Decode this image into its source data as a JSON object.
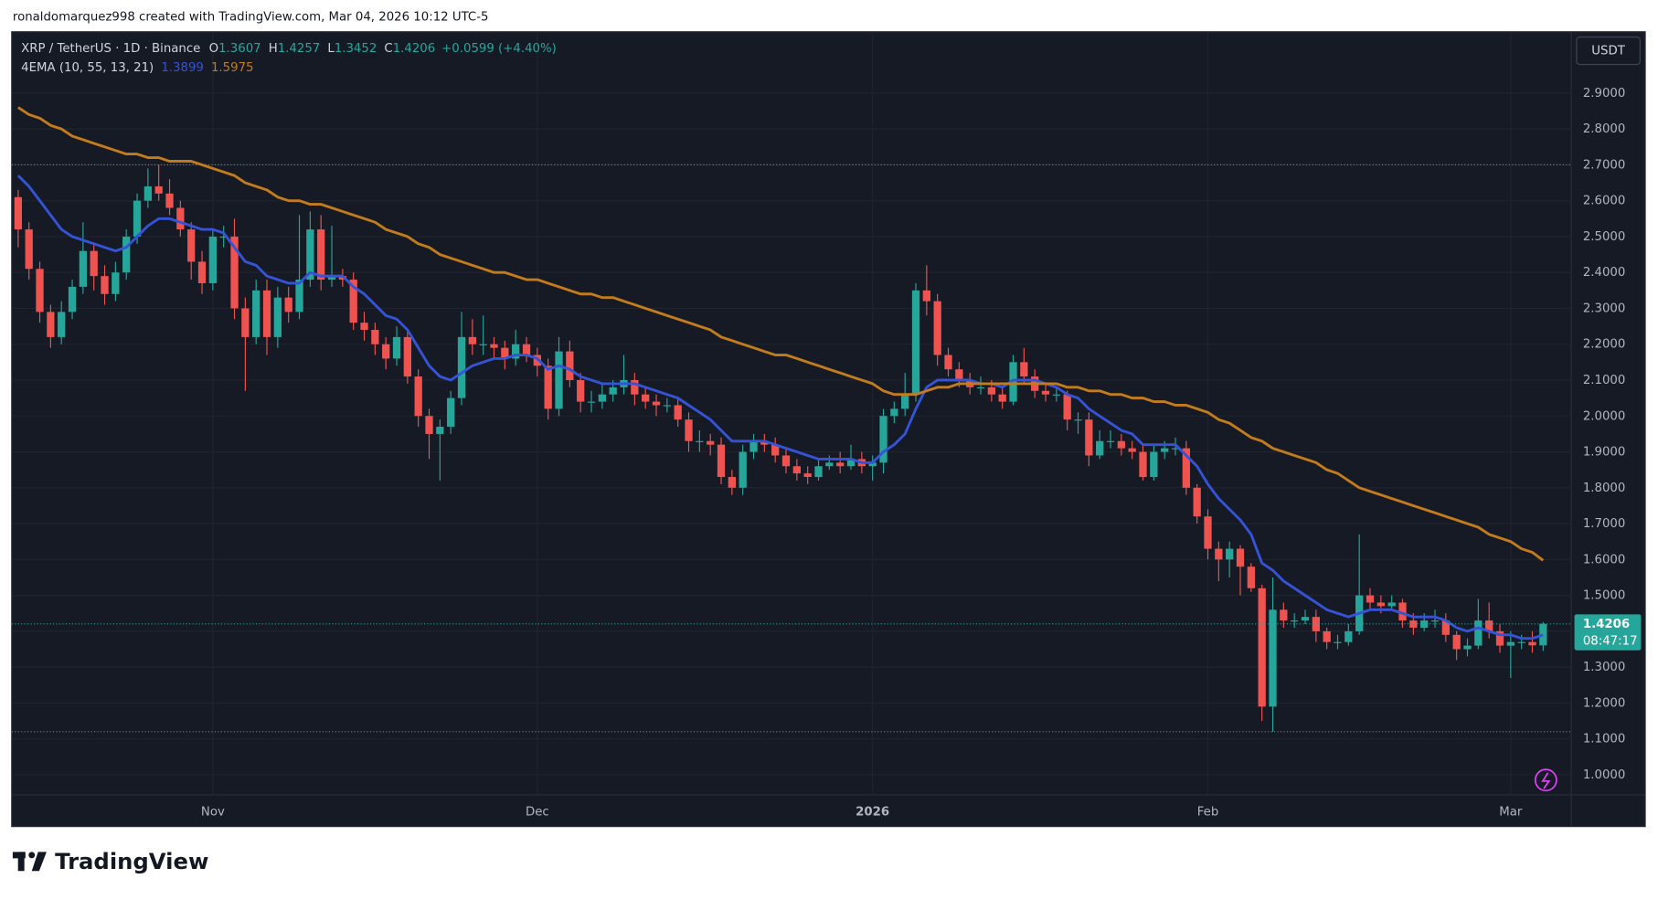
{
  "header": {
    "credit": "ronaldomarquez998 created with TradingView.com, Mar 04, 2026 10:12 UTC-5",
    "symbol": "XRP / TetherUS · 1D · Binance",
    "change": "+0.0599 (+4.40%)",
    "indicator": "4EMA (10, 55, 13, 21)",
    "currency": "USDT",
    "countdown": "08:47:17",
    "brand": "TradingView"
  },
  "chart_data": {
    "type": "candlestick",
    "ohlc_labels": [
      "O",
      "H",
      "L",
      "C"
    ],
    "open": [
      2.61,
      2.52,
      2.41,
      2.29,
      2.22,
      2.29,
      2.36,
      2.46,
      2.39,
      2.34,
      2.4,
      2.5,
      2.6,
      2.64,
      2.62,
      2.58,
      2.52,
      2.43,
      2.37,
      2.5,
      2.5,
      2.3,
      2.22,
      2.35,
      2.22,
      2.33,
      2.29,
      2.38,
      2.52,
      2.38,
      2.39,
      2.38,
      2.26,
      2.24,
      2.2,
      2.16,
      2.22,
      2.11,
      2.0,
      1.95,
      1.97,
      2.05,
      2.22,
      2.2,
      2.2,
      2.19,
      2.16,
      2.2,
      2.17,
      2.14,
      2.02,
      2.18,
      2.1,
      2.04,
      2.04,
      2.06,
      2.08,
      2.1,
      2.06,
      2.04,
      2.03,
      2.03,
      1.99,
      1.93,
      1.93,
      1.92,
      1.83,
      1.8,
      1.9,
      1.93,
      1.92,
      1.89,
      1.86,
      1.84,
      1.83,
      1.86,
      1.87,
      1.86,
      1.88,
      1.86,
      1.87,
      2.0,
      2.02,
      2.06,
      2.35,
      2.32,
      2.17,
      2.13,
      2.1,
      2.08,
      2.08,
      2.06,
      2.04,
      2.15,
      2.11,
      2.07,
      2.06,
      2.06,
      1.99,
      1.99,
      1.89,
      1.93,
      1.93,
      1.91,
      1.9,
      1.83,
      1.9,
      1.91,
      1.91,
      1.8,
      1.72,
      1.63,
      1.6,
      1.63,
      1.58,
      1.52,
      1.19,
      1.46,
      1.43,
      1.43,
      1.44,
      1.4,
      1.37,
      1.37,
      1.4,
      1.5,
      1.48,
      1.47,
      1.48,
      1.43,
      1.41,
      1.43,
      1.43,
      1.39,
      1.35,
      1.36,
      1.43,
      1.4,
      1.36,
      1.37,
      1.37,
      1.3607
    ],
    "high": [
      2.63,
      2.54,
      2.43,
      2.31,
      2.32,
      2.38,
      2.54,
      2.48,
      2.42,
      2.43,
      2.52,
      2.62,
      2.69,
      2.7,
      2.66,
      2.6,
      2.54,
      2.46,
      2.52,
      2.53,
      2.55,
      2.33,
      2.38,
      2.38,
      2.36,
      2.36,
      2.56,
      2.57,
      2.56,
      2.53,
      2.41,
      2.4,
      2.29,
      2.26,
      2.22,
      2.25,
      2.24,
      2.13,
      2.02,
      1.99,
      2.07,
      2.29,
      2.27,
      2.28,
      2.22,
      2.21,
      2.24,
      2.22,
      2.19,
      2.16,
      2.22,
      2.21,
      2.12,
      2.07,
      2.09,
      2.1,
      2.17,
      2.12,
      2.08,
      2.06,
      2.05,
      2.05,
      2.01,
      1.96,
      1.95,
      1.94,
      1.85,
      1.92,
      1.95,
      1.95,
      1.94,
      1.91,
      1.88,
      1.86,
      1.88,
      1.89,
      1.9,
      1.92,
      1.9,
      1.89,
      2.02,
      2.04,
      2.12,
      2.37,
      2.42,
      2.34,
      2.19,
      2.15,
      2.12,
      2.11,
      2.1,
      2.08,
      2.17,
      2.19,
      2.13,
      2.09,
      2.08,
      2.07,
      2.01,
      2.01,
      1.96,
      1.96,
      1.95,
      1.93,
      1.92,
      1.92,
      1.93,
      1.94,
      1.93,
      1.81,
      1.74,
      1.65,
      1.65,
      1.64,
      1.59,
      1.53,
      1.55,
      1.48,
      1.45,
      1.46,
      1.46,
      1.41,
      1.39,
      1.42,
      1.67,
      1.52,
      1.5,
      1.5,
      1.49,
      1.45,
      1.45,
      1.46,
      1.45,
      1.4,
      1.38,
      1.49,
      1.48,
      1.42,
      1.4,
      1.39,
      1.4,
      1.4257
    ],
    "low": [
      2.47,
      2.38,
      2.26,
      2.19,
      2.2,
      2.27,
      2.34,
      2.35,
      2.31,
      2.32,
      2.38,
      2.48,
      2.58,
      2.6,
      2.56,
      2.5,
      2.38,
      2.34,
      2.35,
      2.47,
      2.27,
      2.07,
      2.2,
      2.17,
      2.19,
      2.26,
      2.27,
      2.36,
      2.35,
      2.36,
      2.36,
      2.24,
      2.21,
      2.17,
      2.13,
      2.14,
      2.09,
      1.97,
      1.88,
      1.82,
      1.95,
      2.03,
      2.17,
      2.17,
      2.16,
      2.13,
      2.14,
      2.15,
      2.11,
      1.99,
      2.0,
      2.08,
      2.01,
      2.01,
      2.02,
      2.04,
      2.06,
      2.03,
      2.02,
      2.0,
      2.01,
      1.97,
      1.9,
      1.9,
      1.89,
      1.81,
      1.78,
      1.78,
      1.88,
      1.9,
      1.87,
      1.84,
      1.82,
      1.81,
      1.82,
      1.85,
      1.84,
      1.85,
      1.84,
      1.82,
      1.84,
      1.98,
      2.0,
      2.04,
      2.28,
      2.14,
      2.11,
      2.08,
      2.06,
      2.06,
      2.04,
      2.02,
      2.03,
      2.09,
      2.05,
      2.04,
      2.04,
      1.96,
      1.95,
      1.86,
      1.88,
      1.91,
      1.89,
      1.88,
      1.82,
      1.82,
      1.88,
      1.89,
      1.78,
      1.7,
      1.6,
      1.54,
      1.55,
      1.5,
      1.51,
      1.15,
      1.12,
      1.41,
      1.41,
      1.42,
      1.37,
      1.35,
      1.35,
      1.36,
      1.39,
      1.46,
      1.45,
      1.46,
      1.41,
      1.39,
      1.4,
      1.41,
      1.37,
      1.32,
      1.33,
      1.35,
      1.38,
      1.34,
      1.27,
      1.35,
      1.34,
      1.3452
    ],
    "close": [
      2.52,
      2.41,
      2.29,
      2.22,
      2.29,
      2.36,
      2.46,
      2.39,
      2.34,
      2.4,
      2.5,
      2.6,
      2.64,
      2.62,
      2.58,
      2.52,
      2.43,
      2.37,
      2.5,
      2.5,
      2.3,
      2.22,
      2.35,
      2.22,
      2.33,
      2.29,
      2.38,
      2.52,
      2.38,
      2.39,
      2.38,
      2.26,
      2.24,
      2.2,
      2.16,
      2.22,
      2.11,
      2.0,
      1.95,
      1.97,
      2.05,
      2.22,
      2.2,
      2.2,
      2.19,
      2.16,
      2.2,
      2.17,
      2.14,
      2.02,
      2.18,
      2.1,
      2.04,
      2.04,
      2.06,
      2.08,
      2.1,
      2.06,
      2.04,
      2.03,
      2.03,
      1.99,
      1.93,
      1.93,
      1.92,
      1.83,
      1.8,
      1.9,
      1.93,
      1.92,
      1.89,
      1.86,
      1.84,
      1.83,
      1.86,
      1.87,
      1.86,
      1.88,
      1.86,
      1.87,
      2.0,
      2.02,
      2.06,
      2.35,
      2.32,
      2.17,
      2.13,
      2.1,
      2.08,
      2.08,
      2.06,
      2.04,
      2.15,
      2.11,
      2.07,
      2.06,
      2.06,
      1.99,
      1.99,
      1.89,
      1.93,
      1.93,
      1.91,
      1.9,
      1.83,
      1.9,
      1.91,
      1.91,
      1.8,
      1.72,
      1.63,
      1.6,
      1.63,
      1.58,
      1.52,
      1.19,
      1.46,
      1.43,
      1.43,
      1.44,
      1.4,
      1.37,
      1.37,
      1.4,
      1.5,
      1.48,
      1.47,
      1.48,
      1.43,
      1.41,
      1.43,
      1.43,
      1.39,
      1.35,
      1.36,
      1.43,
      1.4,
      1.36,
      1.37,
      1.37,
      1.3607,
      1.4206
    ],
    "up_color": "#26a69a",
    "down_color": "#ef5350",
    "series": [
      {
        "color": "#3553d6",
        "values": [
          2.67,
          2.64,
          2.6,
          2.56,
          2.52,
          2.5,
          2.49,
          2.48,
          2.47,
          2.46,
          2.47,
          2.5,
          2.53,
          2.55,
          2.55,
          2.54,
          2.53,
          2.52,
          2.52,
          2.51,
          2.47,
          2.43,
          2.42,
          2.39,
          2.38,
          2.37,
          2.37,
          2.4,
          2.39,
          2.39,
          2.39,
          2.36,
          2.34,
          2.31,
          2.28,
          2.27,
          2.24,
          2.19,
          2.14,
          2.11,
          2.1,
          2.12,
          2.14,
          2.15,
          2.16,
          2.16,
          2.17,
          2.17,
          2.16,
          2.13,
          2.14,
          2.13,
          2.11,
          2.1,
          2.09,
          2.09,
          2.09,
          2.09,
          2.08,
          2.07,
          2.06,
          2.05,
          2.03,
          2.01,
          1.99,
          1.96,
          1.93,
          1.93,
          1.93,
          1.93,
          1.92,
          1.91,
          1.9,
          1.89,
          1.88,
          1.88,
          1.88,
          1.88,
          1.87,
          1.87,
          1.9,
          1.92,
          1.95,
          2.02,
          2.08,
          2.1,
          2.1,
          2.1,
          2.1,
          2.09,
          2.09,
          2.08,
          2.1,
          2.1,
          2.1,
          2.09,
          2.08,
          2.06,
          2.05,
          2.02,
          2.0,
          1.98,
          1.96,
          1.95,
          1.92,
          1.92,
          1.92,
          1.92,
          1.89,
          1.86,
          1.81,
          1.77,
          1.74,
          1.71,
          1.67,
          1.59,
          1.57,
          1.54,
          1.52,
          1.5,
          1.48,
          1.46,
          1.45,
          1.44,
          1.45,
          1.46,
          1.46,
          1.46,
          1.45,
          1.44,
          1.44,
          1.44,
          1.43,
          1.41,
          1.4,
          1.41,
          1.4,
          1.39,
          1.39,
          1.38,
          1.38,
          1.3899
        ]
      },
      {
        "color": "#c27c1d",
        "values": [
          2.86,
          2.84,
          2.83,
          2.81,
          2.8,
          2.78,
          2.77,
          2.76,
          2.75,
          2.74,
          2.73,
          2.73,
          2.72,
          2.72,
          2.71,
          2.71,
          2.71,
          2.7,
          2.69,
          2.68,
          2.67,
          2.65,
          2.64,
          2.63,
          2.61,
          2.6,
          2.6,
          2.59,
          2.59,
          2.58,
          2.57,
          2.56,
          2.55,
          2.54,
          2.52,
          2.51,
          2.5,
          2.48,
          2.47,
          2.45,
          2.44,
          2.43,
          2.42,
          2.41,
          2.4,
          2.4,
          2.39,
          2.38,
          2.38,
          2.37,
          2.36,
          2.35,
          2.34,
          2.34,
          2.33,
          2.33,
          2.32,
          2.31,
          2.3,
          2.29,
          2.28,
          2.27,
          2.26,
          2.25,
          2.24,
          2.22,
          2.21,
          2.2,
          2.19,
          2.18,
          2.17,
          2.17,
          2.16,
          2.15,
          2.14,
          2.13,
          2.12,
          2.11,
          2.1,
          2.09,
          2.07,
          2.06,
          2.06,
          2.06,
          2.07,
          2.08,
          2.08,
          2.09,
          2.09,
          2.09,
          2.09,
          2.09,
          2.09,
          2.09,
          2.09,
          2.09,
          2.09,
          2.08,
          2.08,
          2.07,
          2.07,
          2.06,
          2.06,
          2.05,
          2.05,
          2.04,
          2.04,
          2.03,
          2.03,
          2.02,
          2.01,
          1.99,
          1.98,
          1.96,
          1.94,
          1.93,
          1.91,
          1.9,
          1.89,
          1.88,
          1.87,
          1.85,
          1.84,
          1.82,
          1.8,
          1.79,
          1.78,
          1.77,
          1.76,
          1.75,
          1.74,
          1.73,
          1.72,
          1.71,
          1.7,
          1.69,
          1.67,
          1.66,
          1.65,
          1.63,
          1.62,
          1.5975
        ]
      }
    ],
    "xlim": [
      -0.6,
      143.6
    ],
    "xticks": [
      {
        "value": 18,
        "label": "Nov"
      },
      {
        "value": 48,
        "label": "Dec"
      },
      {
        "value": 79,
        "label": "2026"
      },
      {
        "value": 110,
        "label": "Feb"
      },
      {
        "value": 138,
        "label": "Mar"
      }
    ],
    "ylim": [
      0.944,
      3.071
    ],
    "yticks": [
      {
        "value": 1,
        "label": "1.0000"
      },
      {
        "value": 1.1,
        "label": "1.1000"
      },
      {
        "value": 1.2,
        "label": "1.2000"
      },
      {
        "value": 1.3,
        "label": "1.3000"
      },
      {
        "value": 1.4,
        "label": "1.4000"
      },
      {
        "value": 1.5,
        "label": "1.5000"
      },
      {
        "value": 1.6,
        "label": "1.6000"
      },
      {
        "value": 1.7,
        "label": "1.7000"
      },
      {
        "value": 1.8,
        "label": "1.8000"
      },
      {
        "value": 1.9,
        "label": "1.9000"
      },
      {
        "value": 2,
        "label": "2.0000"
      },
      {
        "value": 2.1,
        "label": "2.1000"
      },
      {
        "value": 2.2,
        "label": "2.2000"
      },
      {
        "value": 2.3,
        "label": "2.3000"
      },
      {
        "value": 2.4,
        "label": "2.4000"
      },
      {
        "value": 2.5,
        "label": "2.5000"
      },
      {
        "value": 2.6,
        "label": "2.6000"
      },
      {
        "value": 2.7,
        "label": "2.7000"
      },
      {
        "value": 2.8,
        "label": "2.8000"
      },
      {
        "value": 2.9,
        "label": "2.9000"
      }
    ],
    "grid": true
  }
}
